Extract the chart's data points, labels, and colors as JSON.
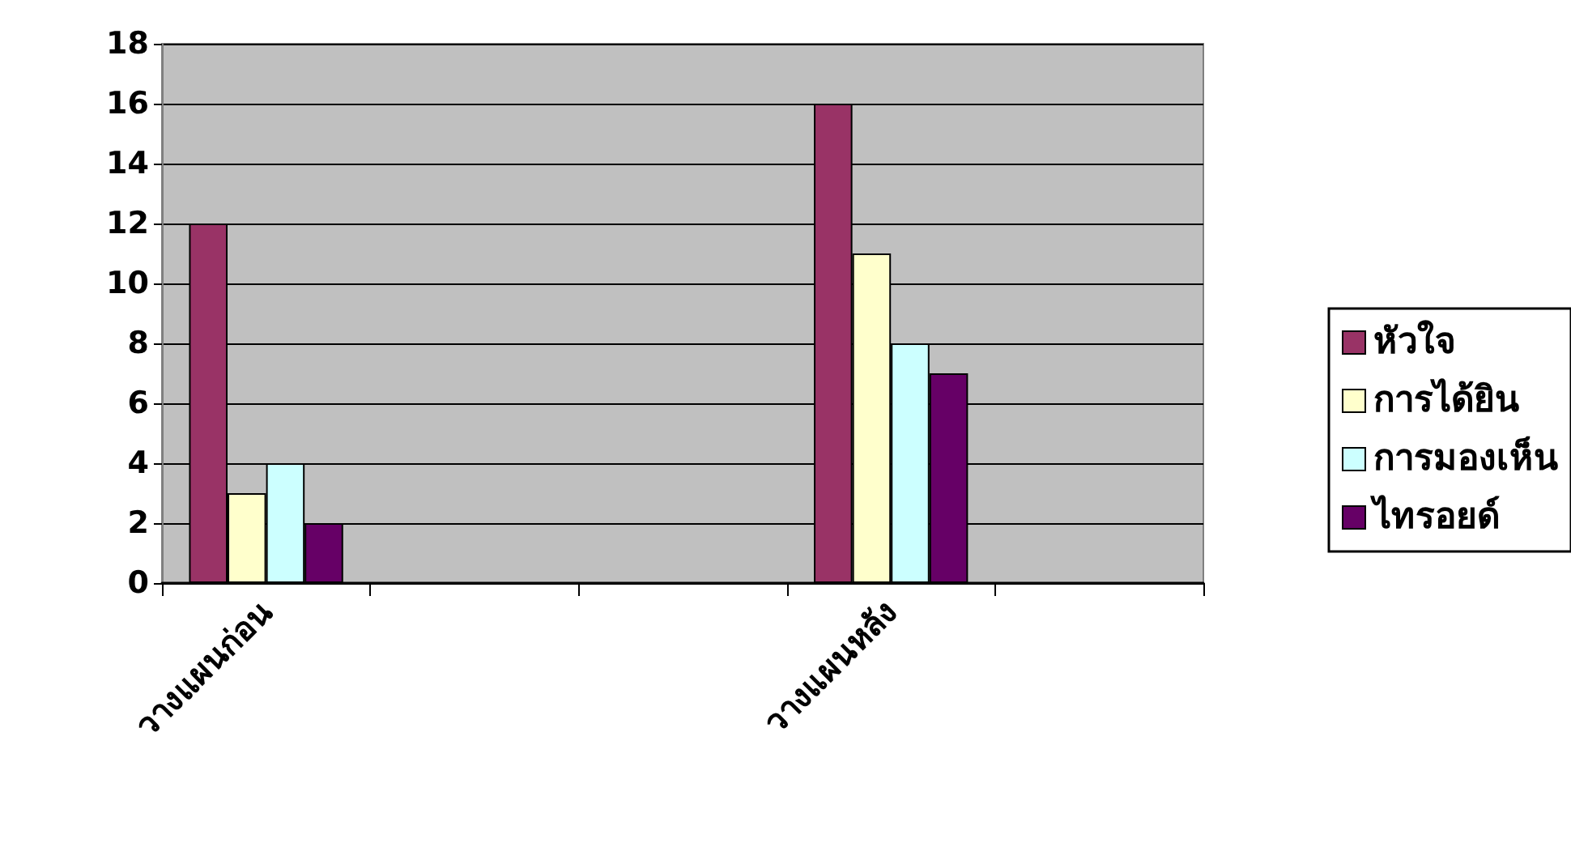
{
  "chart_data": {
    "type": "bar",
    "categories": [
      "วางแผนก่อน",
      null,
      null,
      "วางแผนหลัง",
      null
    ],
    "series": [
      {
        "name": "หัวใจ",
        "color": "#993366",
        "values": [
          12,
          null,
          null,
          16,
          null
        ]
      },
      {
        "name": "การได้ยิน",
        "color": "#ffffcc",
        "values": [
          3,
          null,
          null,
          11,
          null
        ]
      },
      {
        "name": "การมองเห็น",
        "color": "#ccffff",
        "values": [
          4,
          null,
          null,
          8,
          null
        ]
      },
      {
        "name": "ไทรอยด์",
        "color": "#660066",
        "values": [
          2,
          null,
          null,
          7,
          null
        ]
      }
    ],
    "ylim": [
      0,
      18
    ],
    "yticks": [
      0,
      2,
      4,
      6,
      8,
      10,
      12,
      14,
      16,
      18
    ],
    "grid": "y",
    "legend": "right"
  }
}
